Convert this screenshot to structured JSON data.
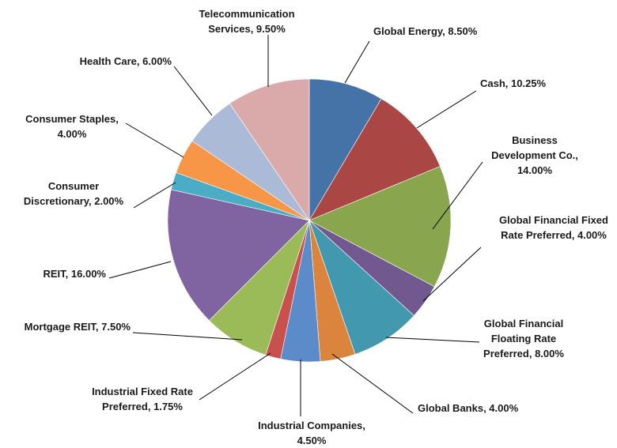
{
  "chart_data": {
    "type": "pie",
    "title": "",
    "unit": "%",
    "slices": [
      {
        "label": "Global Energy",
        "value": 8.5,
        "display": "8.50%",
        "color": "#4572A7"
      },
      {
        "label": "Cash",
        "value": 10.25,
        "display": "10.25%",
        "color": "#AA4643"
      },
      {
        "label": "Business Development Co.",
        "value": 14.0,
        "display": "14.00%",
        "color": "#89A54E"
      },
      {
        "label": "Global Financial Fixed Rate Preferred",
        "value": 4.0,
        "display": "4.00%",
        "color": "#71588F"
      },
      {
        "label": "Global Financial Floating Rate Preferred",
        "value": 8.0,
        "display": "8.00%",
        "color": "#4198AF"
      },
      {
        "label": "Global Banks",
        "value": 4.0,
        "display": "4.00%",
        "color": "#DB843D"
      },
      {
        "label": "Industrial Companies",
        "value": 4.5,
        "display": "4.50%",
        "color": "#5B8BC9"
      },
      {
        "label": "Industrial Fixed Rate Preferred",
        "value": 1.75,
        "display": "1.75%",
        "color": "#C8504D"
      },
      {
        "label": "Mortgage REIT",
        "value": 7.5,
        "display": "7.50%",
        "color": "#9BBB59"
      },
      {
        "label": "REIT",
        "value": 16.0,
        "display": "16.00%",
        "color": "#8064A2"
      },
      {
        "label": "Consumer Discretionary",
        "value": 2.0,
        "display": "2.00%",
        "color": "#4BACC6"
      },
      {
        "label": "Consumer Staples",
        "value": 4.0,
        "display": "4.00%",
        "color": "#F79646"
      },
      {
        "label": "Health Care",
        "value": 6.0,
        "display": "6.00%",
        "color": "#AABAD7"
      },
      {
        "label": "Telecommunication Services",
        "value": 9.5,
        "display": "9.50%",
        "color": "#D9AAA9"
      }
    ],
    "label_lines": [
      [
        "Global Energy, 8.50%"
      ],
      [
        "Cash, 10.25%"
      ],
      [
        "Business",
        "Development Co.,",
        "14.00%"
      ],
      [
        "Global Financial Fixed",
        "Rate Preferred, 4.00%"
      ],
      [
        "Global Financial",
        "Floating Rate",
        "Preferred, 8.00%"
      ],
      [
        "Global Banks, 4.00%"
      ],
      [
        "Industrial Companies,",
        "4.50%"
      ],
      [
        "Industrial Fixed Rate",
        "Preferred, 1.75%"
      ],
      [
        "Mortgage REIT, 7.50%"
      ],
      [
        "REIT, 16.00%"
      ],
      [
        "Consumer",
        "Discretionary, 2.00%"
      ],
      [
        "Consumer Staples,",
        "4.00%"
      ],
      [
        "Health Care, 6.00%"
      ],
      [
        "Telecommunication",
        "Services, 9.50%"
      ]
    ],
    "legend": "none"
  }
}
